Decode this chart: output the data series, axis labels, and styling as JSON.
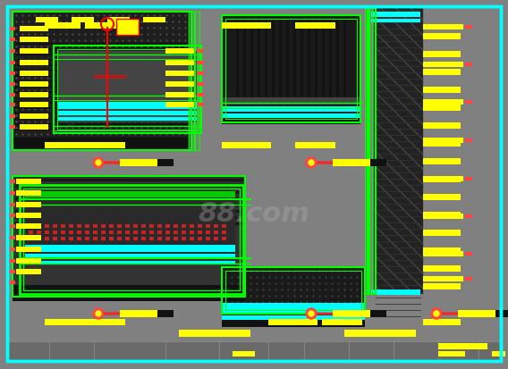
{
  "bg_color": "#808080",
  "fig_width": 5.68,
  "fig_height": 4.14,
  "dpi": 100,
  "watermark_text": "88.com",
  "watermark_color": "#b0b0b0",
  "watermark_alpha": 0.35
}
